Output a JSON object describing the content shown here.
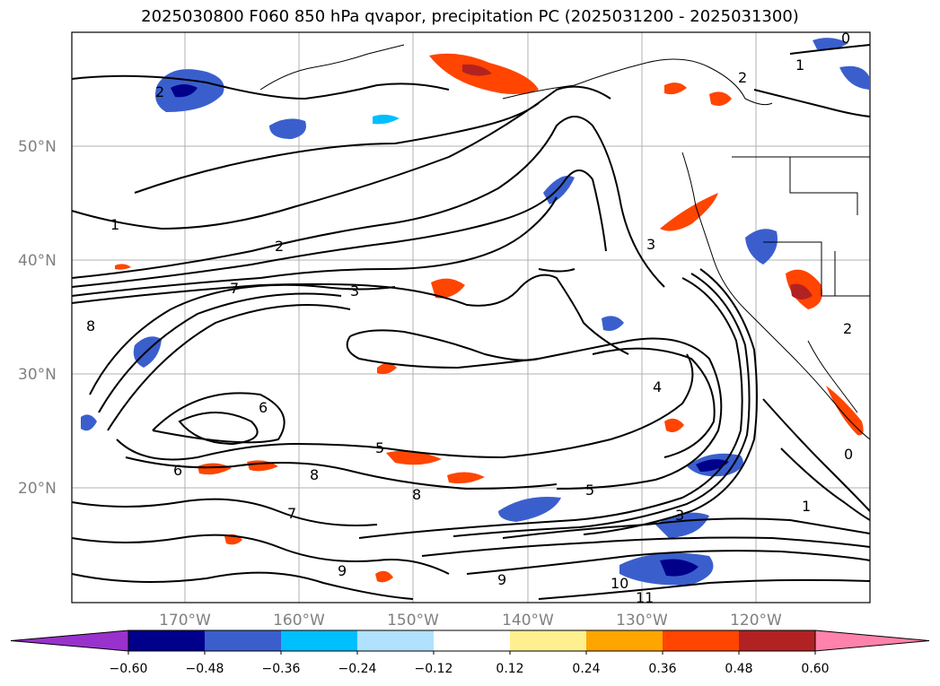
{
  "title": "2025030800 F060 850 hPa qvapor, precipitation PC (2025031200 - 2025031300)",
  "lat_labels": [
    "50°N",
    "40°N",
    "30°N",
    "20°N"
  ],
  "lon_labels": [
    "170°W",
    "160°W",
    "150°W",
    "140°W",
    "130°W",
    "120°W"
  ],
  "colorbar": {
    "ticks": [
      "−0.60",
      "−0.48",
      "−0.36",
      "−0.24",
      "−0.12",
      "0.12",
      "0.24",
      "0.36",
      "0.48",
      "0.60"
    ],
    "colors": [
      "#9932cc",
      "#00008b",
      "#3a5fcd",
      "#00bfff",
      "#b0e2ff",
      "#ffffff",
      "#fff08f",
      "#ffa500",
      "#ff4500",
      "#b22222",
      "#ff82ab"
    ]
  },
  "contour_labels": [
    "2",
    "1",
    "2",
    "7",
    "3",
    "8",
    "6",
    "5",
    "8",
    "6",
    "8",
    "7",
    "5",
    "3",
    "2",
    "1",
    "0",
    "9",
    "10",
    "11",
    "4",
    "9",
    "2",
    "0",
    "1",
    "3"
  ]
}
